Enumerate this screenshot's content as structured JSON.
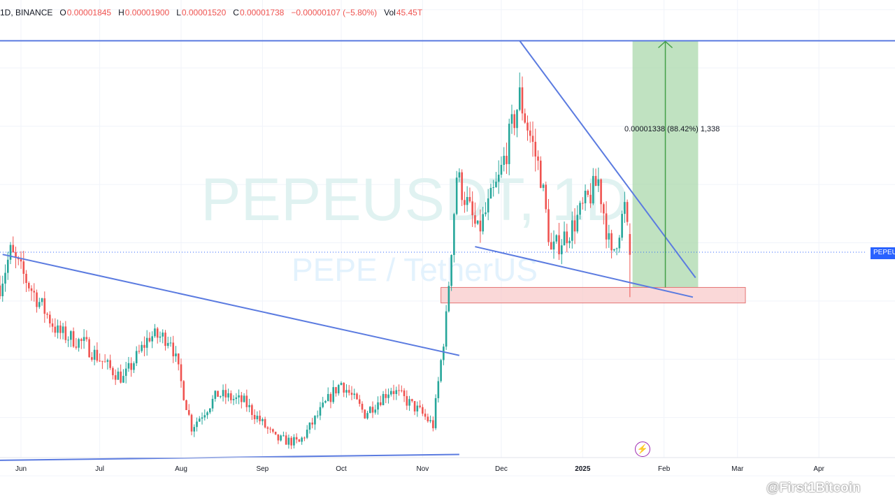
{
  "header": {
    "symbol_interval": "1D",
    "exchange": "BINANCE",
    "open_label": "O",
    "open": "0.00001845",
    "high_label": "H",
    "high": "0.00001900",
    "low_label": "L",
    "low": "0.00001520",
    "close_label": "C",
    "close": "0.00001738",
    "change": "−0.00000107 (−5.80%)",
    "vol_label": "Vol",
    "vol": "45.45T"
  },
  "watermark_symbol": "PEPEUSDT, 1D",
  "watermark_name": "PEPE / TetherUS",
  "price_tag": "PEPEUS",
  "measure_label": "0.00001338 (88.42%) 1,338",
  "social_watermark": "@First1Bitcoin",
  "colors": {
    "up": "#26a69a",
    "down": "#ef5350",
    "trendline": "#5b7be0",
    "target_box": "#a5d6a7",
    "support_box": "#f8c7c7",
    "arrow": "#43a047",
    "watermark": "#e0f2f1"
  },
  "chart_data": {
    "type": "candlestick",
    "symbol": "PEPEUSDT",
    "interval": "1D",
    "exchange": "BINANCE",
    "x_tick_labels": [
      "Jun",
      "Jul",
      "Aug",
      "Sep",
      "Oct",
      "Nov",
      "Dec",
      "2025",
      "Feb",
      "Mar",
      "Apr"
    ],
    "x_tick_dates": [
      "2024-06-01",
      "2024-07-01",
      "2024-08-01",
      "2024-09-01",
      "2024-10-01",
      "2024-11-01",
      "2024-12-01",
      "2025-01-01",
      "2025-02-01",
      "2025-03-01",
      "2025-04-01"
    ],
    "x_range": [
      "2024-05-24",
      "2025-04-30"
    ],
    "y_range": [
      4.6e-06,
      3.05e-05
    ],
    "last_ohlc": {
      "open": 1.845e-05,
      "high": 1.9e-05,
      "low": 1.52e-05,
      "close": 1.738e-05,
      "change": -1.07e-06,
      "change_pct": -5.8,
      "volume": "45.45T"
    },
    "close_series": [
      {
        "date": "2024-05-24",
        "close": 1.58e-05
      },
      {
        "date": "2024-05-28",
        "close": 1.75e-05
      },
      {
        "date": "2024-06-05",
        "close": 1.56e-05
      },
      {
        "date": "2024-06-15",
        "close": 1.34e-05
      },
      {
        "date": "2024-06-25",
        "close": 1.28e-05
      },
      {
        "date": "2024-07-05",
        "close": 1.15e-05
      },
      {
        "date": "2024-07-10",
        "close": 1.1e-05
      },
      {
        "date": "2024-07-20",
        "close": 1.32e-05
      },
      {
        "date": "2024-07-28",
        "close": 1.31e-05
      },
      {
        "date": "2024-08-05",
        "close": 8.5e-06
      },
      {
        "date": "2024-08-15",
        "close": 1.02e-05
      },
      {
        "date": "2024-08-25",
        "close": 9.8e-06
      },
      {
        "date": "2024-09-06",
        "close": 7.9e-06
      },
      {
        "date": "2024-09-15",
        "close": 7.7e-06
      },
      {
        "date": "2024-09-28",
        "close": 1.03e-05
      },
      {
        "date": "2024-10-01",
        "close": 1.08e-05
      },
      {
        "date": "2024-10-10",
        "close": 9.2e-06
      },
      {
        "date": "2024-10-20",
        "close": 1.05e-05
      },
      {
        "date": "2024-10-31",
        "close": 9.3e-06
      },
      {
        "date": "2024-11-05",
        "close": 8.6e-06
      },
      {
        "date": "2024-11-10",
        "close": 1.41e-05
      },
      {
        "date": "2024-11-14",
        "close": 2.15e-05
      },
      {
        "date": "2024-11-22",
        "close": 1.85e-05
      },
      {
        "date": "2024-11-30",
        "close": 2.12e-05
      },
      {
        "date": "2024-12-08",
        "close": 2.55e-05
      },
      {
        "date": "2024-12-16",
        "close": 2.15e-05
      },
      {
        "date": "2024-12-20",
        "close": 1.75e-05
      },
      {
        "date": "2024-12-28",
        "close": 1.88e-05
      },
      {
        "date": "2025-01-07",
        "close": 2.12e-05
      },
      {
        "date": "2025-01-12",
        "close": 1.72e-05
      },
      {
        "date": "2025-01-17",
        "close": 1.98e-05
      },
      {
        "date": "2025-01-19",
        "close": 1.74e-05
      }
    ],
    "drawings": {
      "horizontal_resistance": 2.84e-05,
      "descending_line_1": {
        "from": {
          "date": "2024-05-25",
          "price": 1.74e-05
        },
        "to": {
          "date": "2024-11-15",
          "price": 1.22e-05
        }
      },
      "lower_support_line": {
        "from": {
          "date": "2024-05-24",
          "price": 6.8e-06
        },
        "to": {
          "date": "2024-11-15",
          "price": 7.1e-06
        }
      },
      "falling_wedge_upper": {
        "from": {
          "date": "2024-12-08",
          "price": 2.84e-05
        },
        "to": {
          "date": "2025-02-13",
          "price": 1.62e-05
        }
      },
      "falling_wedge_lower": {
        "from": {
          "date": "2024-11-21",
          "price": 1.78e-05
        },
        "to": {
          "date": "2025-02-12",
          "price": 1.52e-05
        }
      },
      "support_zone": {
        "from": "2024-11-08",
        "to": "2025-03-04",
        "bottom": 1.49e-05,
        "top": 1.57e-05
      },
      "target_box": {
        "from": "2025-01-20",
        "to": "2025-02-14",
        "bottom": 1.57e-05,
        "top": 2.84e-05
      },
      "price_range_measurement": {
        "value": 1.338e-05,
        "percent": 88.42,
        "ticks": 1338
      }
    }
  }
}
